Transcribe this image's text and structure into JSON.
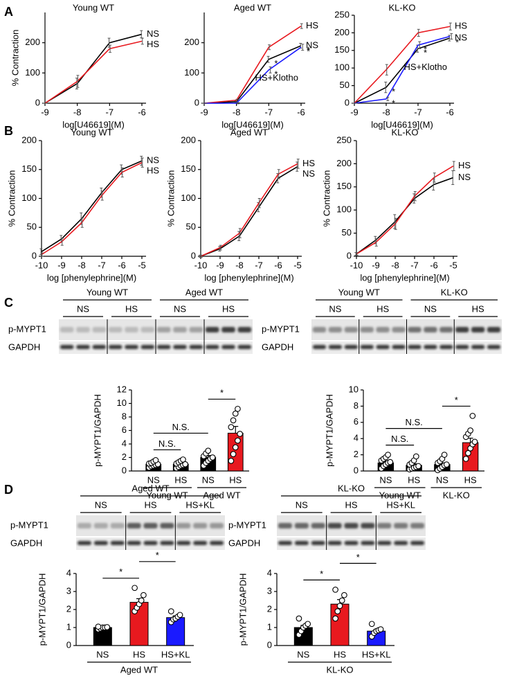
{
  "panel_labels": [
    "A",
    "B",
    "C",
    "D"
  ],
  "blots": [
    {
      "groups": [
        {
          "name": "Young WT",
          "lanes": [
            "NS",
            "HS"
          ]
        },
        {
          "name": "Aged WT",
          "lanes": [
            "NS",
            "HS"
          ]
        }
      ],
      "rows": [
        "p-MYPT1",
        "GAPDH"
      ]
    },
    {
      "groups": [
        {
          "name": "Young WT",
          "lanes": [
            "NS",
            "HS"
          ]
        },
        {
          "name": "KL-KO",
          "lanes": [
            "NS",
            "HS"
          ]
        }
      ],
      "rows": [
        "p-MYPT1",
        "GAPDH"
      ]
    },
    {
      "groups": [
        {
          "name": "Aged WT",
          "lanes": [
            "NS",
            "HS",
            "HS+KL"
          ]
        }
      ],
      "rows": [
        "p-MYPT1",
        "GAPDH"
      ]
    },
    {
      "groups": [
        {
          "name": "KL-KO",
          "lanes": [
            "NS",
            "HS",
            "HS+KL"
          ]
        }
      ],
      "rows": [
        "p-MYPT1",
        "GAPDH"
      ]
    }
  ],
  "chart_data": [
    {
      "type": "line",
      "title": "Young WT",
      "x_label": "log[U46619](M)",
      "y_label": "% Contraction",
      "x": [
        -9,
        -8,
        -7,
        -6
      ],
      "xlim": [
        -9,
        -6
      ],
      "xticks": [
        -9,
        -8,
        -7,
        -6
      ],
      "ylim": [
        0,
        300
      ],
      "yticks": [
        0,
        100,
        200
      ],
      "series": [
        {
          "name": "NS",
          "color": "#000000",
          "values": [
            0,
            65,
            200,
            228
          ],
          "errors": [
            0,
            18,
            15,
            12
          ]
        },
        {
          "name": "HS",
          "color": "#e8191f",
          "values": [
            0,
            72,
            180,
            205
          ],
          "errors": [
            0,
            20,
            12,
            10
          ]
        }
      ]
    },
    {
      "type": "line",
      "title": "Aged WT",
      "x_label": "log[U46619](M)",
      "x": [
        -9,
        -8,
        -7,
        -6
      ],
      "xlim": [
        -9,
        -6
      ],
      "xticks": [
        -9,
        -8,
        -7,
        -6
      ],
      "ylim": [
        0,
        300
      ],
      "yticks": [
        0,
        100,
        200
      ],
      "series": [
        {
          "name": "NS",
          "color": "#000000",
          "values": [
            0,
            5,
            145,
            190
          ],
          "errors": [
            0,
            3,
            10,
            8
          ],
          "point_labels": [
            null,
            null,
            "*",
            "*"
          ]
        },
        {
          "name": "HS",
          "color": "#e8191f",
          "values": [
            0,
            10,
            185,
            255
          ],
          "errors": [
            0,
            3,
            8,
            8
          ]
        },
        {
          "name": "HS+Klotho",
          "color": "#1a1aff",
          "values": [
            0,
            0,
            110,
            185
          ],
          "errors": [
            0,
            2,
            10,
            10
          ],
          "point_labels": [
            null,
            null,
            "*",
            "*"
          ]
        }
      ]
    },
    {
      "type": "line",
      "title": "KL-KO",
      "x_label": "log[U46619](M)",
      "x": [
        -9,
        -8,
        -7,
        -6
      ],
      "xlim": [
        -9,
        -6
      ],
      "xticks": [
        -9,
        -8,
        -7,
        -6
      ],
      "ylim": [
        0,
        250
      ],
      "yticks": [
        0,
        50,
        100,
        150,
        200,
        250
      ],
      "series": [
        {
          "name": "NS",
          "color": "#000000",
          "values": [
            0,
            45,
            155,
            185
          ],
          "errors": [
            0,
            15,
            10,
            8
          ],
          "point_labels": [
            null,
            "*",
            "*",
            "*"
          ]
        },
        {
          "name": "HS",
          "color": "#e8191f",
          "values": [
            0,
            95,
            200,
            218
          ],
          "errors": [
            0,
            15,
            10,
            10
          ]
        },
        {
          "name": "HS+Klotho",
          "color": "#1a1aff",
          "values": [
            0,
            12,
            165,
            190
          ],
          "errors": [
            0,
            5,
            10,
            8
          ],
          "point_labels": [
            null,
            "*",
            "*",
            null
          ]
        }
      ]
    },
    {
      "type": "line",
      "title": "Young WT",
      "x_label": "log [phenylephrine](M)",
      "y_label": "% Contraction",
      "x": [
        -10,
        -9,
        -8,
        -7,
        -6,
        -5
      ],
      "xlim": [
        -10,
        -5
      ],
      "xticks": [
        -10,
        -9,
        -8,
        -7,
        -6,
        -5
      ],
      "ylim": [
        0,
        200
      ],
      "yticks": [
        0,
        50,
        100,
        150,
        200
      ],
      "series": [
        {
          "name": "NS",
          "color": "#000000",
          "values": [
            8,
            30,
            65,
            110,
            150,
            165
          ],
          "errors": [
            5,
            6,
            10,
            8,
            8,
            8
          ]
        },
        {
          "name": "HS",
          "color": "#e8191f",
          "values": [
            3,
            25,
            58,
            105,
            145,
            162
          ],
          "errors": [
            3,
            6,
            8,
            8,
            8,
            8
          ]
        }
      ]
    },
    {
      "type": "line",
      "title": "Aged WT",
      "x_label": "log [phenylephrine](M)",
      "y_label": "% Contraction",
      "x": [
        -10,
        -9,
        -8,
        -7,
        -6,
        -5
      ],
      "xlim": [
        -10,
        -5
      ],
      "xticks": [
        -10,
        -9,
        -8,
        -7,
        -6,
        -5
      ],
      "ylim": [
        0,
        200
      ],
      "yticks": [
        0,
        50,
        100,
        150,
        200
      ],
      "series": [
        {
          "name": "NS",
          "color": "#000000",
          "values": [
            0,
            13,
            35,
            85,
            135,
            155
          ],
          "errors": [
            2,
            4,
            8,
            8,
            8,
            8
          ]
        },
        {
          "name": "HS",
          "color": "#e8191f",
          "values": [
            0,
            15,
            40,
            92,
            142,
            160
          ],
          "errors": [
            2,
            4,
            8,
            8,
            8,
            8
          ]
        }
      ]
    },
    {
      "type": "line",
      "title": "KL-KO",
      "x_label": "log [phenylephrine](M)",
      "y_label": "% Contraction",
      "x": [
        -10,
        -9,
        -8,
        -7,
        -6,
        -5
      ],
      "xlim": [
        -10,
        -5
      ],
      "xticks": [
        -10,
        -9,
        -8,
        -7,
        -6,
        -5
      ],
      "ylim": [
        0,
        250
      ],
      "yticks": [
        0,
        50,
        100,
        150,
        200,
        250
      ],
      "series": [
        {
          "name": "NS",
          "color": "#000000",
          "values": [
            5,
            35,
            75,
            125,
            155,
            170
          ],
          "errors": [
            3,
            8,
            15,
            10,
            12,
            15
          ]
        },
        {
          "name": "HS",
          "color": "#e8191f",
          "values": [
            5,
            30,
            70,
            130,
            170,
            195
          ],
          "errors": [
            3,
            8,
            12,
            10,
            10,
            10
          ]
        }
      ]
    },
    {
      "type": "bar",
      "y_label": "p-MYPT1/GAPDH",
      "ylim": [
        0,
        12
      ],
      "yticks": [
        0,
        2,
        4,
        6,
        8,
        10,
        12
      ],
      "groups": [
        {
          "name": "Young WT",
          "categories": [
            "NS",
            "HS"
          ],
          "colors": [
            "#000000",
            "#000000"
          ],
          "values": [
            1.0,
            1.0
          ],
          "errors": [
            0.15,
            0.15
          ],
          "points": [
            [
              0.5,
              0.7,
              0.8,
              0.9,
              1.0,
              1.1,
              1.2,
              1.4,
              1.6
            ],
            [
              0.4,
              0.6,
              0.8,
              0.9,
              1.0,
              1.1,
              1.3,
              1.5,
              1.7
            ]
          ]
        },
        {
          "name": "Aged WT",
          "categories": [
            "NS",
            "HS"
          ],
          "colors": [
            "#000000",
            "#e8191f"
          ],
          "values": [
            2.0,
            5.6
          ],
          "errors": [
            0.3,
            1.0
          ],
          "points": [
            [
              0.8,
              1.2,
              1.5,
              1.8,
              2.0,
              2.2,
              2.6,
              3.0
            ],
            [
              1.5,
              2.5,
              3.5,
              4.5,
              5.5,
              6.5,
              7.5,
              8.5,
              9.2
            ]
          ]
        }
      ],
      "brackets": [
        {
          "label": "N.S.",
          "bars": [
            0,
            1
          ]
        },
        {
          "label": "N.S.",
          "bars": [
            0,
            2
          ]
        },
        {
          "label": "*",
          "bars": [
            2,
            3
          ]
        }
      ]
    },
    {
      "type": "bar",
      "y_label": "p-MYPT1/GAPDH",
      "ylim": [
        0,
        10
      ],
      "yticks": [
        0,
        2,
        4,
        6,
        8,
        10
      ],
      "groups": [
        {
          "name": "Young WT",
          "categories": [
            "NS",
            "HS"
          ],
          "colors": [
            "#000000",
            "#000000"
          ],
          "values": [
            1.0,
            0.7
          ],
          "errors": [
            0.18,
            0.18
          ],
          "points": [
            [
              0.3,
              0.6,
              0.8,
              1.0,
              1.1,
              1.3,
              1.5,
              1.7,
              2.0
            ],
            [
              0.2,
              0.3,
              0.4,
              0.5,
              0.6,
              0.8,
              1.0,
              1.3,
              1.8
            ]
          ]
        },
        {
          "name": "KL-KO",
          "categories": [
            "NS",
            "HS"
          ],
          "colors": [
            "#000000",
            "#e8191f"
          ],
          "values": [
            0.8,
            3.5
          ],
          "errors": [
            0.2,
            0.55
          ],
          "points": [
            [
              0.1,
              0.3,
              0.5,
              0.7,
              0.8,
              1.0,
              1.2,
              1.5,
              2.0
            ],
            [
              1.5,
              2.2,
              2.8,
              3.3,
              3.6,
              4.2,
              4.6,
              5.0,
              6.8
            ]
          ]
        }
      ],
      "brackets": [
        {
          "label": "N.S.",
          "bars": [
            0,
            1
          ]
        },
        {
          "label": "N.S.",
          "bars": [
            0,
            2
          ]
        },
        {
          "label": "*",
          "bars": [
            2,
            3
          ]
        }
      ]
    },
    {
      "type": "bar",
      "y_label": "p-MYPT1/GAPDH",
      "ylim": [
        0,
        4
      ],
      "yticks": [
        0,
        1,
        2,
        3,
        4
      ],
      "groups": [
        {
          "name": "Aged WT",
          "categories": [
            "NS",
            "HS",
            "HS+KL"
          ],
          "colors": [
            "#000000",
            "#e8191f",
            "#1a1aff"
          ],
          "values": [
            1.0,
            2.4,
            1.55
          ],
          "errors": [
            0.03,
            0.2,
            0.1
          ],
          "points": [
            [
              0.9,
              0.95,
              1.0,
              1.0,
              1.02,
              1.05
            ],
            [
              1.9,
              2.1,
              2.3,
              2.5,
              2.8,
              3.2
            ],
            [
              1.3,
              1.45,
              1.5,
              1.6,
              1.7,
              1.9
            ]
          ]
        }
      ],
      "brackets": [
        {
          "label": "*",
          "bars": [
            0,
            1
          ]
        },
        {
          "label": "*",
          "bars": [
            1,
            2
          ]
        }
      ]
    },
    {
      "type": "bar",
      "y_label": "p-MYPT1/GAPDH",
      "ylim": [
        0,
        4
      ],
      "yticks": [
        0,
        1,
        2,
        3,
        4
      ],
      "groups": [
        {
          "name": "KL-KO",
          "categories": [
            "NS",
            "HS",
            "HS+KL"
          ],
          "colors": [
            "#000000",
            "#e8191f",
            "#1a1aff"
          ],
          "values": [
            1.0,
            2.3,
            0.8
          ],
          "errors": [
            0.12,
            0.25,
            0.1
          ],
          "points": [
            [
              0.6,
              0.8,
              1.0,
              1.1,
              1.2,
              1.5
            ],
            [
              1.5,
              1.9,
              2.2,
              2.5,
              2.8,
              3.1
            ],
            [
              0.5,
              0.7,
              0.8,
              0.85,
              0.9,
              1.2
            ]
          ]
        }
      ],
      "brackets": [
        {
          "label": "*",
          "bars": [
            0,
            1
          ]
        },
        {
          "label": "*",
          "bars": [
            1,
            2
          ]
        }
      ]
    }
  ]
}
